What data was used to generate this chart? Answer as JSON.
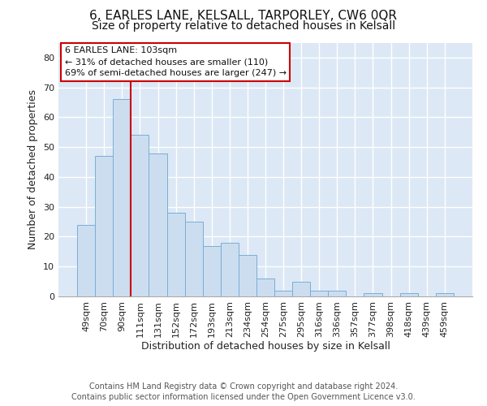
{
  "title": "6, EARLES LANE, KELSALL, TARPORLEY, CW6 0QR",
  "subtitle": "Size of property relative to detached houses in Kelsall",
  "xlabel": "Distribution of detached houses by size in Kelsall",
  "ylabel": "Number of detached properties",
  "bar_color": "#ccddf0",
  "bar_edge_color": "#7aaed4",
  "categories": [
    "49sqm",
    "70sqm",
    "90sqm",
    "111sqm",
    "131sqm",
    "152sqm",
    "172sqm",
    "193sqm",
    "213sqm",
    "234sqm",
    "254sqm",
    "275sqm",
    "295sqm",
    "316sqm",
    "336sqm",
    "357sqm",
    "377sqm",
    "398sqm",
    "418sqm",
    "439sqm",
    "459sqm"
  ],
  "values": [
    24,
    47,
    66,
    54,
    48,
    28,
    25,
    17,
    18,
    14,
    6,
    2,
    5,
    2,
    2,
    0,
    1,
    0,
    1,
    0,
    1
  ],
  "ylim": [
    0,
    85
  ],
  "yticks": [
    0,
    10,
    20,
    30,
    40,
    50,
    60,
    70,
    80
  ],
  "annotation_title": "6 EARLES LANE: 103sqm",
  "annotation_line1": "← 31% of detached houses are smaller (110)",
  "annotation_line2": "69% of semi-detached houses are larger (247) →",
  "vline_x_index": 2.5,
  "annotation_box_color": "#ffffff",
  "annotation_box_edge": "#cc0000",
  "vline_color": "#cc0000",
  "footer1": "Contains HM Land Registry data © Crown copyright and database right 2024.",
  "footer2": "Contains public sector information licensed under the Open Government Licence v3.0.",
  "plot_bg_color": "#dce8f5",
  "fig_bg_color": "#ffffff",
  "grid_color": "#ffffff",
  "title_fontsize": 11,
  "subtitle_fontsize": 10,
  "axis_label_fontsize": 9,
  "tick_fontsize": 8,
  "footer_fontsize": 7,
  "annotation_fontsize": 8
}
